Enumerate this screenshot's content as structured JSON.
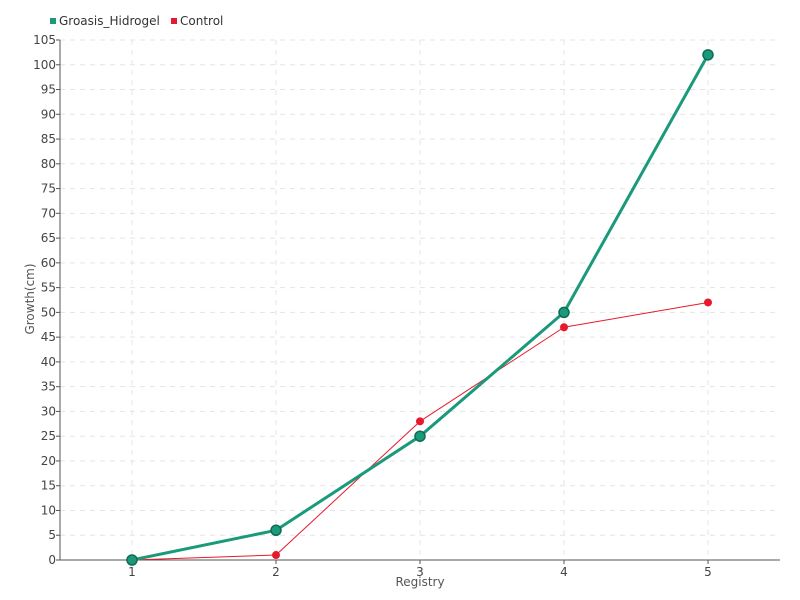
{
  "chart_data": {
    "type": "line",
    "title": "",
    "xlabel": "Registry",
    "ylabel": "Growth(cm)",
    "categories": [
      "1",
      "2",
      "3",
      "4",
      "5"
    ],
    "ylim": [
      0,
      105
    ],
    "ytick_step": 5,
    "grid": true,
    "legend_position": "top-left",
    "series": [
      {
        "name": "Groasis_Hidrogel",
        "values": [
          0,
          6,
          25,
          50,
          102
        ],
        "color": "#1a9a7a"
      },
      {
        "name": "Control",
        "values": [
          0,
          1,
          28,
          47,
          52
        ],
        "color": "#e8192c"
      }
    ]
  }
}
